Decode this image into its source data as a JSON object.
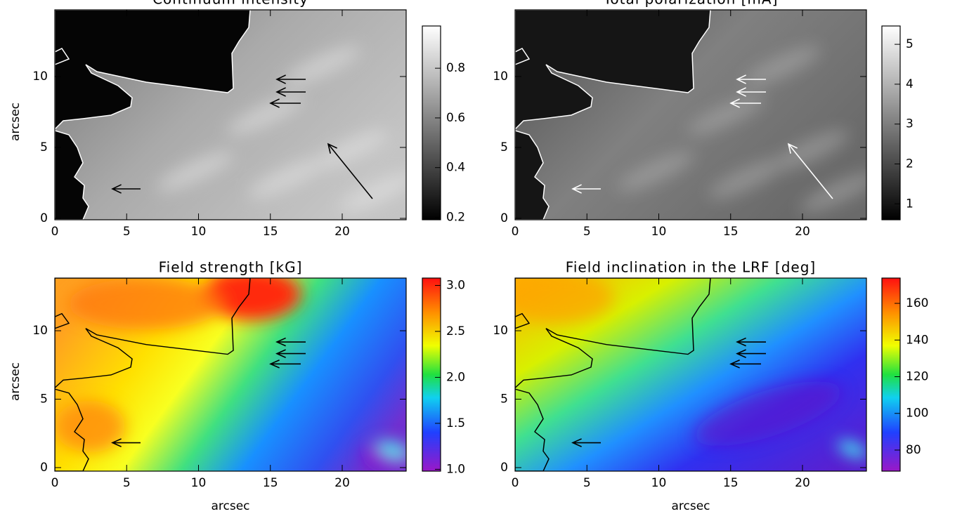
{
  "chart_data": [
    {
      "type": "heatmap",
      "title": "Continuum intensity",
      "ylabel": "arcsec",
      "xlim": [
        0,
        24.45
      ],
      "ylim": [
        -0.1,
        14.7
      ],
      "xticks": [
        0,
        5,
        10,
        15,
        20
      ],
      "yticks": [
        0,
        5,
        10
      ],
      "colormap": "gray",
      "colorbar_lim": [
        0.19,
        0.97
      ],
      "colorbar_ticks": [
        0.2,
        0.4,
        0.6,
        0.8
      ],
      "contour_color": "#ffffff",
      "arrow_color": "#000000"
    },
    {
      "type": "heatmap",
      "title": "Total polarization [mA]",
      "xlim": [
        0,
        24.45
      ],
      "ylim": [
        -0.1,
        14.7
      ],
      "xticks": [
        0,
        5,
        10,
        15,
        20
      ],
      "yticks": [
        0,
        5,
        10
      ],
      "colormap": "gray",
      "colorbar_lim": [
        0.6,
        5.46
      ],
      "colorbar_ticks": [
        1,
        2,
        3,
        4,
        5
      ],
      "contour_color": "#ffffff",
      "arrow_color": "#ffffff"
    },
    {
      "type": "heatmap",
      "title": "Field strength [kG]",
      "xlabel": "arcsec",
      "ylabel": "arcsec",
      "xlim": [
        0,
        24.45
      ],
      "ylim": [
        -0.26,
        13.85
      ],
      "xticks": [
        0,
        5,
        10,
        15,
        20
      ],
      "yticks": [
        0,
        5,
        10
      ],
      "colormap": "rainbow",
      "colorbar_lim": [
        0.98,
        3.08
      ],
      "colorbar_ticks": [
        {
          "value": 1,
          "label": "1.0"
        },
        1.5,
        {
          "value": 2,
          "label": "2.0"
        },
        2.5,
        {
          "value": 3,
          "label": "3.0"
        }
      ],
      "contour_color": "#000000",
      "arrow_color": "#000000"
    },
    {
      "type": "heatmap",
      "title": "Field inclination in the LRF [deg]",
      "xlabel": "arcsec",
      "xlim": [
        0,
        24.45
      ],
      "ylim": [
        -0.26,
        13.85
      ],
      "xticks": [
        0,
        5,
        10,
        15,
        20
      ],
      "yticks": [
        0,
        5,
        10
      ],
      "colormap": "rainbow",
      "colorbar_lim": [
        68.5,
        173.8
      ],
      "colorbar_ticks": [
        80,
        100,
        120,
        140,
        160
      ],
      "contour_color": "#000000",
      "arrow_color": "#000000"
    }
  ]
}
